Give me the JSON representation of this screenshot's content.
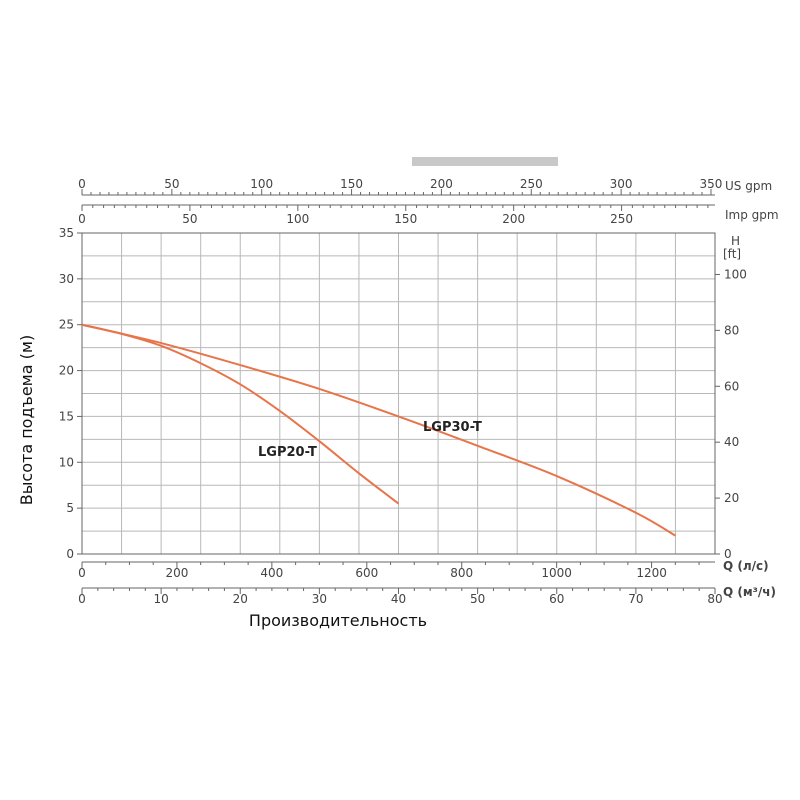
{
  "chart_data": {
    "type": "line",
    "xlabel": "Производительность",
    "ylabel": "Высота подъема (м)",
    "ylim": [
      0,
      35
    ],
    "y_ticks": [
      "0",
      "5",
      "10",
      "15",
      "20",
      "25",
      "30",
      "35"
    ],
    "grid": true,
    "right_axis": {
      "unit_h": "H",
      "unit_ft": "[ft]",
      "ticks": [
        "0",
        "20",
        "40",
        "60",
        "80",
        "100"
      ]
    },
    "flow_axes": [
      {
        "unit": "US gpm",
        "ticks": [
          "0",
          "50",
          "100",
          "150",
          "200",
          "250",
          "300",
          "350"
        ]
      },
      {
        "unit": "Imp gpm",
        "ticks": [
          "0",
          "50",
          "100",
          "150",
          "200",
          "250"
        ]
      },
      {
        "unit": "Q (л/с)",
        "ticks": [
          "0",
          "200",
          "400",
          "600",
          "800",
          "1000",
          "1200"
        ]
      },
      {
        "unit": "Q (м³/ч)",
        "ticks": [
          "0",
          "10",
          "20",
          "30",
          "40",
          "50",
          "60",
          "70",
          "80"
        ]
      }
    ],
    "x_units": "Q (м³/ч)",
    "xlim": [
      0,
      80
    ],
    "series": [
      {
        "name": "LGP20-T",
        "x": [
          0,
          5,
          10,
          15,
          20,
          25,
          30,
          35,
          40
        ],
        "y": [
          25,
          24,
          22.7,
          20.8,
          18.5,
          15.6,
          12.3,
          8.8,
          5.5
        ]
      },
      {
        "name": "LGP30-T",
        "x": [
          0,
          10,
          20,
          30,
          40,
          50,
          60,
          70,
          75
        ],
        "y": [
          25,
          23,
          20.6,
          18,
          15,
          11.8,
          8.5,
          4.5,
          2
        ]
      }
    ],
    "colors": {
      "curve": "#e8744a",
      "grid": "#b8b8b8",
      "axis": "#666666",
      "gray_bar": "#c8c8c8"
    }
  }
}
